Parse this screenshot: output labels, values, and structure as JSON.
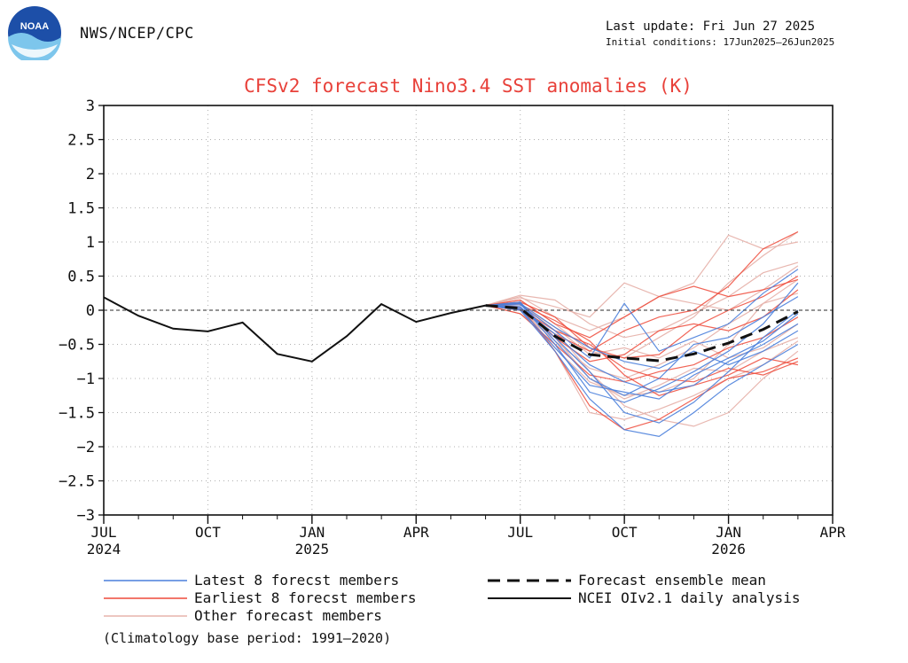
{
  "header": {
    "org": "NWS/NCEP/CPC",
    "last_update": "Last update: Fri Jun 27 2025",
    "initial_conditions": "Initial conditions: 17Jun2025–26Jun2025",
    "logo_text": "NOAA"
  },
  "colors": {
    "title": "#e8413a",
    "latest": "#4a7fdc",
    "earliest": "#ee4a3a",
    "other": "#e7b3ac",
    "mean": "#111111",
    "analysis": "#111111",
    "zero_line": "#555555",
    "grid": "#b0b0b0"
  },
  "chart_data": {
    "type": "line",
    "title": "CFSv2 forecast Nino3.4 SST anomalies (K)",
    "xlabel": "",
    "ylabel": "",
    "ylim": [
      -3,
      3
    ],
    "xlim": [
      "2024-07",
      "2026-04"
    ],
    "y_ticks": [
      "3",
      "2.5",
      "2",
      "1.5",
      "1",
      "0.5",
      "0",
      "−0.5",
      "−1",
      "−1.5",
      "−2",
      "−2.5",
      "−3"
    ],
    "x_ticks": [
      {
        "month": "2024-07",
        "label": "JUL",
        "year": "2024"
      },
      {
        "month": "2024-10",
        "label": "OCT",
        "year": ""
      },
      {
        "month": "2025-01",
        "label": "JAN",
        "year": "2025"
      },
      {
        "month": "2025-04",
        "label": "APR",
        "year": ""
      },
      {
        "month": "2025-07",
        "label": "JUL",
        "year": ""
      },
      {
        "month": "2025-10",
        "label": "OCT",
        "year": ""
      },
      {
        "month": "2026-01",
        "label": "JAN",
        "year": "2026"
      },
      {
        "month": "2026-04",
        "label": "APR",
        "year": ""
      }
    ],
    "grid": true,
    "legend_position": "bottom",
    "series": [
      {
        "name": "NCEI OIv2.1 daily analysis",
        "role": "analysis",
        "x": [
          "2024-07",
          "2024-08",
          "2024-09",
          "2024-10",
          "2024-11",
          "2024-12",
          "2025-01",
          "2025-02",
          "2025-03",
          "2025-04",
          "2025-05",
          "2025-06"
        ],
        "y": [
          0.19,
          -0.08,
          -0.27,
          -0.31,
          -0.18,
          -0.64,
          -0.75,
          -0.38,
          0.09,
          -0.17,
          -0.04,
          0.07
        ]
      },
      {
        "name": "Forecast ensemble mean",
        "role": "mean",
        "x": [
          "2025-06",
          "2025-07",
          "2025-08",
          "2025-09",
          "2025-10",
          "2025-11",
          "2025-12",
          "2026-01",
          "2026-02",
          "2026-03"
        ],
        "y": [
          0.07,
          0.03,
          -0.38,
          -0.65,
          -0.7,
          -0.74,
          -0.64,
          -0.48,
          -0.28,
          -0.02
        ]
      }
    ],
    "members_x": [
      "2025-06",
      "2025-07",
      "2025-08",
      "2025-09",
      "2025-10",
      "2025-11",
      "2025-12",
      "2026-01",
      "2026-02",
      "2026-03"
    ],
    "members": {
      "latest": [
        [
          0.07,
          0.1,
          -0.5,
          -1.2,
          -1.35,
          -1.15,
          -0.9,
          -0.6,
          -0.2,
          0.4
        ],
        [
          0.07,
          0.05,
          -0.4,
          -0.9,
          -1.5,
          -1.65,
          -1.35,
          -0.9,
          -0.4,
          0.0
        ],
        [
          0.07,
          0.0,
          -0.6,
          -1.3,
          -1.75,
          -1.85,
          -1.5,
          -1.1,
          -0.8,
          -0.5
        ],
        [
          0.07,
          0.08,
          -0.3,
          -0.7,
          0.1,
          -0.6,
          -0.4,
          -0.2,
          0.25,
          0.6
        ],
        [
          0.07,
          0.12,
          -0.45,
          -1.0,
          -1.25,
          -1.0,
          -0.5,
          -0.4,
          -0.1,
          0.2
        ],
        [
          0.07,
          0.02,
          -0.55,
          -1.1,
          -1.2,
          -1.3,
          -0.95,
          -0.7,
          -0.45,
          -0.05
        ],
        [
          0.07,
          0.1,
          -0.25,
          -0.55,
          -0.75,
          -0.85,
          -0.6,
          -0.8,
          -0.6,
          -0.3
        ],
        [
          0.07,
          0.04,
          -0.35,
          -0.8,
          -1.05,
          -1.2,
          -1.1,
          -0.75,
          -0.5,
          -0.2
        ]
      ],
      "earliest": [
        [
          0.07,
          0.15,
          -0.2,
          -0.4,
          -0.1,
          0.2,
          0.35,
          0.2,
          0.3,
          0.45
        ],
        [
          0.07,
          0.05,
          -0.6,
          -1.4,
          -1.75,
          -1.6,
          -1.3,
          -1.0,
          -0.9,
          -0.7
        ],
        [
          0.07,
          0.0,
          -0.35,
          -0.6,
          -0.3,
          -0.1,
          0.0,
          0.35,
          0.9,
          1.15
        ],
        [
          0.07,
          0.12,
          -0.1,
          -0.55,
          -0.7,
          -0.65,
          -0.25,
          0.0,
          0.2,
          0.5
        ],
        [
          0.07,
          -0.05,
          -0.5,
          -0.95,
          -1.05,
          -0.9,
          -0.8,
          -0.55,
          -0.4,
          -0.1
        ],
        [
          0.07,
          0.1,
          -0.4,
          -0.75,
          -0.65,
          -0.3,
          -0.2,
          -0.3,
          -0.1,
          0.3
        ],
        [
          0.07,
          0.02,
          -0.3,
          -0.5,
          -0.85,
          -1.0,
          -1.05,
          -0.85,
          -0.95,
          -0.75
        ],
        [
          0.07,
          0.08,
          -0.15,
          -0.45,
          -0.95,
          -1.25,
          -1.1,
          -0.95,
          -0.7,
          -0.8
        ]
      ],
      "other": [
        [
          0.07,
          0.2,
          -0.1,
          -0.3,
          -0.1,
          0.2,
          0.4,
          1.1,
          0.9,
          1.0
        ],
        [
          0.07,
          0.15,
          -0.2,
          -0.6,
          -0.7,
          -0.4,
          -0.1,
          0.4,
          0.8,
          1.15
        ],
        [
          0.07,
          0.05,
          -0.55,
          -1.05,
          -1.25,
          -1.2,
          -1.0,
          -0.5,
          0.1,
          0.45
        ],
        [
          0.07,
          0.1,
          -0.3,
          -0.9,
          -1.4,
          -1.6,
          -1.7,
          -1.5,
          -1.0,
          -0.6
        ],
        [
          0.07,
          0.18,
          0.05,
          -0.1,
          0.4,
          0.2,
          0.1,
          0.0,
          0.3,
          0.65
        ],
        [
          0.07,
          0.0,
          -0.45,
          -0.85,
          -1.0,
          -0.8,
          -0.55,
          -0.2,
          0.1,
          0.25
        ],
        [
          0.07,
          0.12,
          -0.6,
          -1.5,
          -1.6,
          -1.45,
          -1.25,
          -1.0,
          -0.8,
          -0.45
        ],
        [
          0.07,
          0.08,
          -0.25,
          -0.65,
          -0.55,
          -0.7,
          -0.45,
          -0.7,
          -0.55,
          -0.2
        ],
        [
          0.07,
          0.22,
          0.15,
          -0.2,
          -0.4,
          -0.3,
          -0.05,
          0.2,
          0.55,
          0.7
        ],
        [
          0.07,
          -0.05,
          -0.4,
          -1.0,
          -1.3,
          -1.1,
          -0.85,
          -0.9,
          -0.6,
          -0.4
        ]
      ]
    }
  },
  "legend": {
    "latest": "Latest 8 forecst members",
    "earliest": "Earliest 8 forecst members",
    "other": "Other forecast members",
    "mean": "Forecast ensemble mean",
    "analysis": "NCEI OIv2.1 daily analysis"
  },
  "footnote": "(Climatology base period: 1991–2020)"
}
